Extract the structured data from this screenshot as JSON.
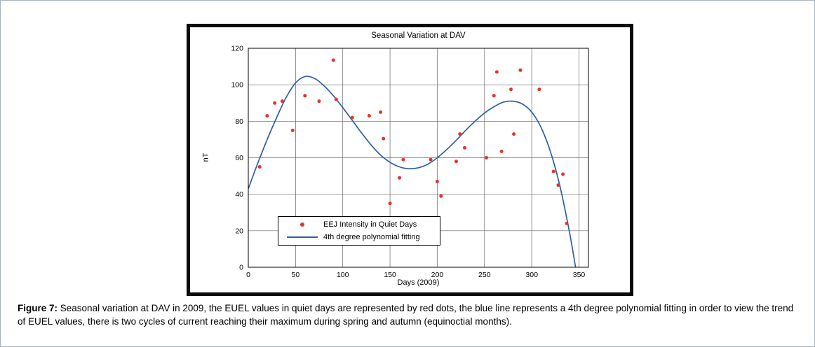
{
  "figure": {
    "caption": {
      "label": "Figure 7:",
      "text": "Seasonal variation at DAV in 2009, the EUEL values in quiet days are represented by red dots, the blue line represents a 4th degree polynomial fitting in order to view the trend of EUEL values, there is two cycles of current reaching their maximum during spring and autumn (equinoctial months)."
    }
  },
  "chart_data": {
    "type": "scatter",
    "title": "Seasonal Variation at DAV",
    "xlabel": "Days (2009)",
    "ylabel": "nT",
    "xlim": [
      0,
      360
    ],
    "ylim": [
      0,
      120
    ],
    "xticks": [
      0,
      50,
      100,
      150,
      200,
      250,
      300,
      350
    ],
    "yticks": [
      0,
      20,
      40,
      60,
      80,
      100,
      120
    ],
    "grid": true,
    "legend_position": "lower-left-inside",
    "colors": {
      "scatter": "#e0352b",
      "fit_line": "#2e5fa3",
      "grid": "#666666",
      "axis": "#000000",
      "background": "#ffffff"
    },
    "series": [
      {
        "name": "EEJ Intensity in Quiet Days",
        "type": "scatter",
        "color": "#e0352b",
        "points": [
          [
            12,
            55
          ],
          [
            20,
            83
          ],
          [
            28,
            90
          ],
          [
            36,
            91
          ],
          [
            47,
            75
          ],
          [
            60,
            94
          ],
          [
            75,
            91
          ],
          [
            90,
            113.5
          ],
          [
            93,
            92
          ],
          [
            110,
            82
          ],
          [
            128,
            83
          ],
          [
            140,
            85
          ],
          [
            143,
            70.5
          ],
          [
            150,
            35
          ],
          [
            160,
            49
          ],
          [
            164,
            59
          ],
          [
            193,
            59
          ],
          [
            200,
            47
          ],
          [
            204,
            39
          ],
          [
            220,
            58
          ],
          [
            224,
            73
          ],
          [
            229,
            65.5
          ],
          [
            252,
            60
          ],
          [
            260,
            94
          ],
          [
            263,
            107
          ],
          [
            268,
            63.5
          ],
          [
            278,
            97.5
          ],
          [
            281,
            73
          ],
          [
            288,
            108
          ],
          [
            308,
            97.5
          ],
          [
            323,
            52.5
          ],
          [
            328,
            45
          ],
          [
            333,
            51
          ],
          [
            337,
            24
          ]
        ]
      },
      {
        "name": "4th degree polynomial fitting",
        "type": "line",
        "color": "#2e5fa3",
        "points": [
          [
            0,
            43
          ],
          [
            10,
            57
          ],
          [
            20,
            70
          ],
          [
            30,
            82
          ],
          [
            40,
            93
          ],
          [
            50,
            101
          ],
          [
            60,
            104.5
          ],
          [
            70,
            103.5
          ],
          [
            80,
            99.5
          ],
          [
            90,
            94
          ],
          [
            100,
            87.5
          ],
          [
            110,
            80.5
          ],
          [
            120,
            73.5
          ],
          [
            130,
            67
          ],
          [
            140,
            61.5
          ],
          [
            150,
            57.5
          ],
          [
            160,
            55
          ],
          [
            170,
            54
          ],
          [
            180,
            54.5
          ],
          [
            190,
            56.5
          ],
          [
            200,
            60
          ],
          [
            210,
            64.5
          ],
          [
            220,
            69.5
          ],
          [
            230,
            75
          ],
          [
            240,
            80
          ],
          [
            250,
            84.5
          ],
          [
            260,
            88
          ],
          [
            270,
            90.5
          ],
          [
            280,
            91
          ],
          [
            290,
            89.5
          ],
          [
            300,
            85
          ],
          [
            310,
            76.5
          ],
          [
            320,
            63
          ],
          [
            330,
            44
          ],
          [
            340,
            19
          ],
          [
            347,
            -2
          ]
        ]
      }
    ]
  }
}
